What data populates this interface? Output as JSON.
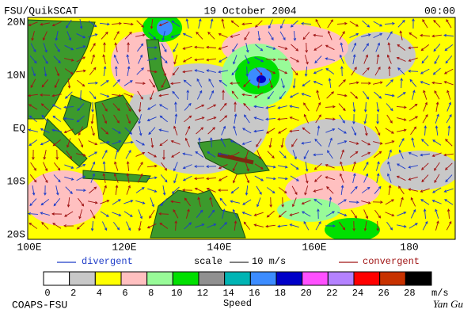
{
  "header": {
    "left": "FSU/QuikSCAT",
    "center": "19 October 2004",
    "right": "00:00"
  },
  "map": {
    "lat_labels": [
      "20N",
      "10N",
      "EQ",
      "10S",
      "20S"
    ],
    "lon_labels": [
      "100E",
      "120E",
      "140E",
      "160E",
      "180"
    ]
  },
  "legend": {
    "divergent": {
      "label": "divergent",
      "color": "#1e3cc8"
    },
    "scale": {
      "label": "scale",
      "text": "10 m/s"
    },
    "convergent": {
      "label": "convergent",
      "color": "#a01414"
    }
  },
  "colorbar": {
    "ticks": [
      "0",
      "2",
      "4",
      "6",
      "8",
      "10",
      "12",
      "14",
      "16",
      "18",
      "20",
      "22",
      "24",
      "26",
      "28"
    ],
    "unit": "m/s",
    "title": "Speed",
    "colors": [
      "#ffffff",
      "#c8c8c8",
      "#ffff00",
      "#ffc0c0",
      "#98fb98",
      "#00e000",
      "#909090",
      "#00b4b4",
      "#3c8cff",
      "#0000c8",
      "#ff50ff",
      "#b482ff",
      "#ff0000",
      "#c83200",
      "#000000"
    ]
  },
  "footer": {
    "left": "COAPS-FSU",
    "right": "Yan Gu"
  }
}
